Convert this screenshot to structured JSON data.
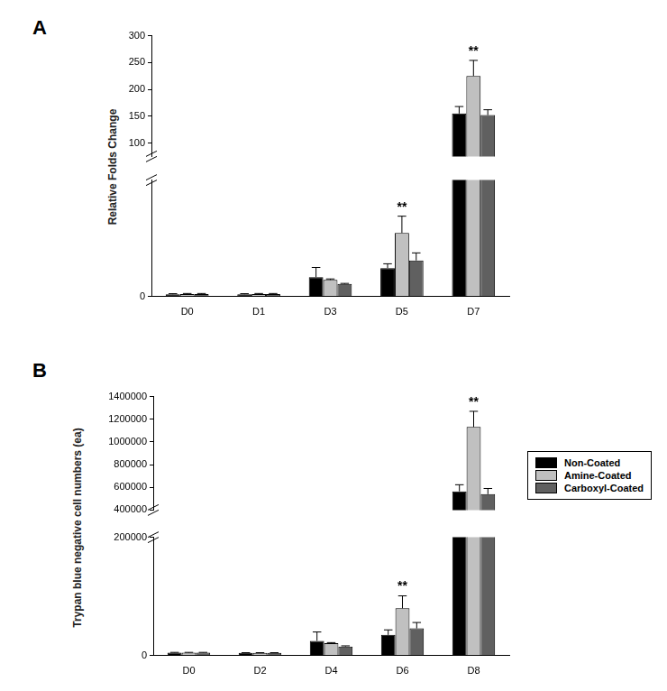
{
  "chart_data": [
    {
      "panel": "A",
      "type": "bar",
      "y_label": "Relative Folds Change",
      "categories": [
        "D0",
        "D1",
        "D3",
        "D5",
        "D7"
      ],
      "series": [
        {
          "name": "Non-Coated",
          "color": "#000000",
          "values": [
            1.2,
            1.2,
            10,
            14.7,
            155
          ],
          "errors": [
            0.3,
            0.3,
            5,
            2.2,
            13
          ]
        },
        {
          "name": "Amine-Coated",
          "color": "#c0c0c0",
          "values": [
            1.3,
            1.3,
            8.6,
            32.8,
            225
          ],
          "errors": [
            0.3,
            0.3,
            0.5,
            8.6,
            29
          ]
        },
        {
          "name": "Carboxyl-Coated",
          "color": "#606060",
          "values": [
            1.3,
            1.3,
            6.5,
            18.6,
            152
          ],
          "errors": [
            0.3,
            0.3,
            0.3,
            3.9,
            10
          ]
        }
      ],
      "ylim": [
        0,
        300
      ],
      "y_break": [
        60,
        75
      ],
      "yticks": [
        0,
        100,
        150,
        200,
        250,
        300
      ],
      "annotations": [
        {
          "category": "D5",
          "series": "Amine-Coated",
          "text": "**"
        },
        {
          "category": "D7",
          "series": "Amine-Coated",
          "text": "**"
        }
      ],
      "grid": false,
      "legend": false
    },
    {
      "panel": "B",
      "type": "bar",
      "y_label": "Trypan blue negative cell numbers (ea)",
      "categories": [
        "D0",
        "D2",
        "D4",
        "D6",
        "D8"
      ],
      "series": [
        {
          "name": "Non-Coated",
          "color": "#000000",
          "values": [
            5000,
            4500,
            25000,
            35000,
            565000
          ],
          "errors": [
            500,
            500,
            15000,
            8500,
            58000
          ]
        },
        {
          "name": "Amine-Coated",
          "color": "#c0c0c0",
          "values": [
            5000,
            4500,
            21000,
            80000,
            1132000
          ],
          "errors": [
            500,
            500,
            1000,
            21000,
            138000
          ]
        },
        {
          "name": "Carboxyl-Coated",
          "color": "#606060",
          "values": [
            5000,
            4500,
            15500,
            46000,
            540000
          ],
          "errors": [
            500,
            500,
            1000,
            10000,
            50000
          ]
        }
      ],
      "ylim": [
        0,
        1400000
      ],
      "y_break": [
        200000,
        400000
      ],
      "yticks": [
        0,
        200000,
        400000,
        600000,
        800000,
        1000000,
        1200000,
        1400000
      ],
      "annotations": [
        {
          "category": "D6",
          "series": "Amine-Coated",
          "text": "**"
        },
        {
          "category": "D8",
          "series": "Amine-Coated",
          "text": "**"
        }
      ],
      "grid": false,
      "legend": "right"
    }
  ]
}
